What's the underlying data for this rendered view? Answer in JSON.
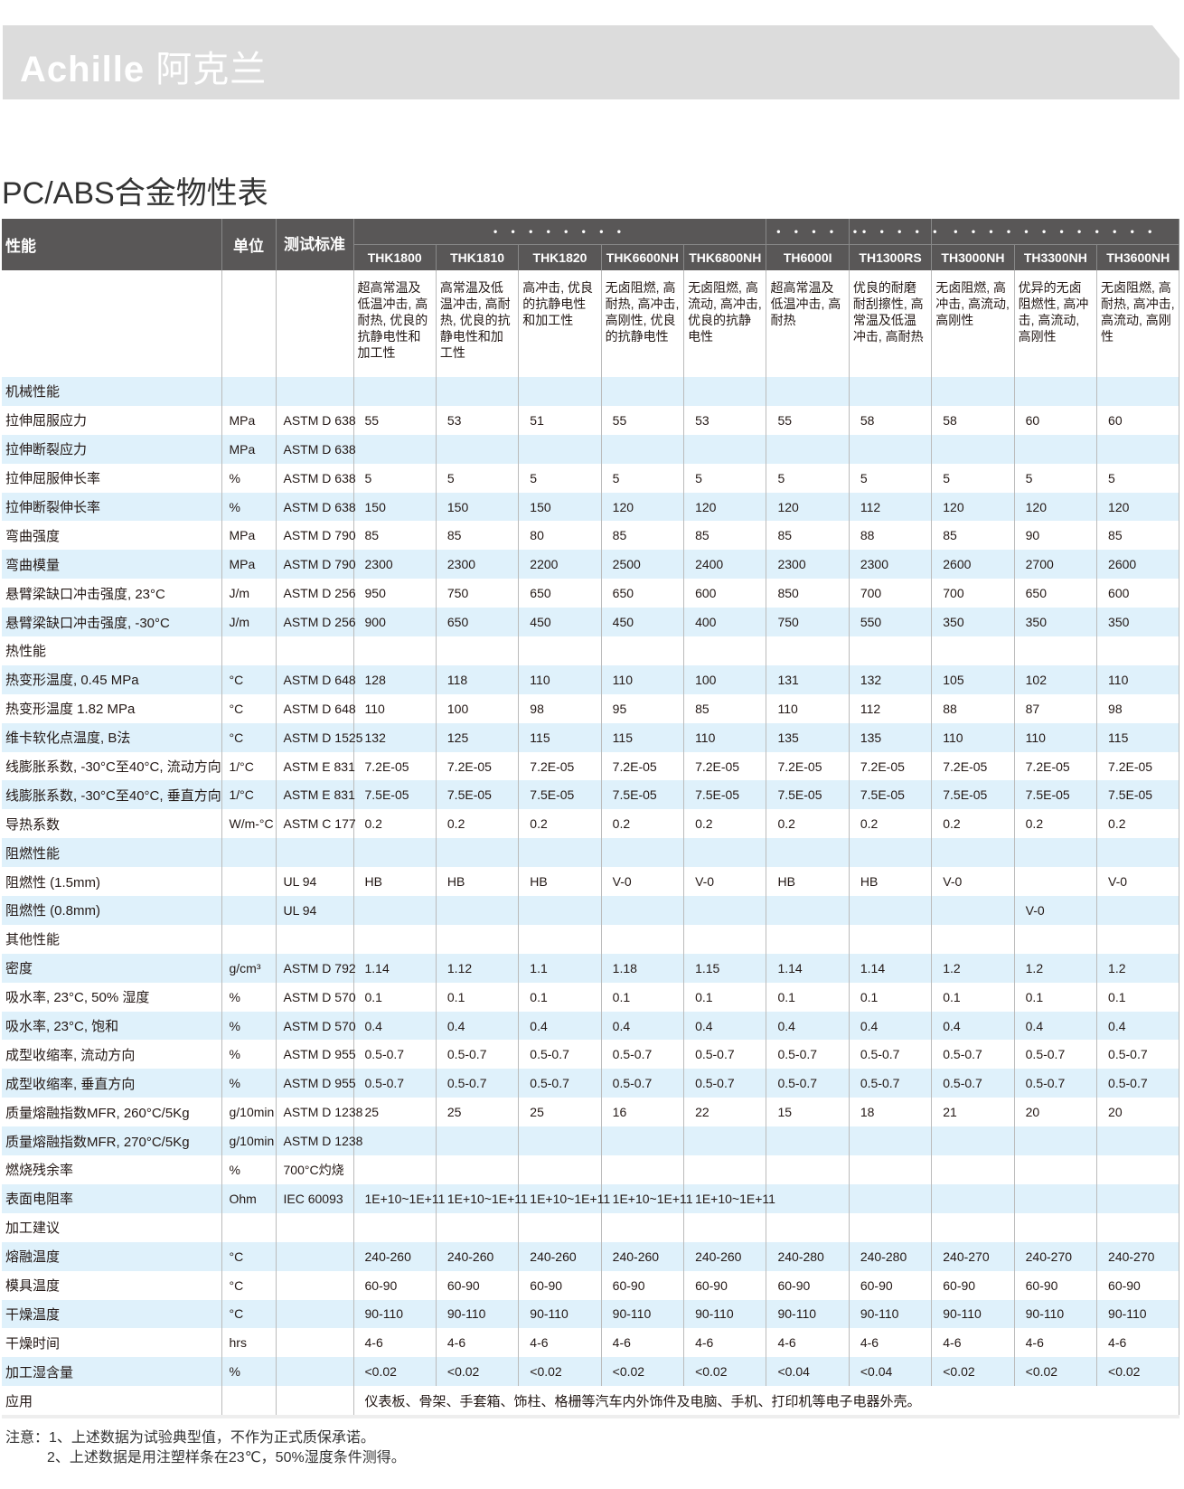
{
  "header": {
    "brand_latin": "Achille",
    "brand_cn": "阿克兰",
    "banner_color": "#dcdcdc"
  },
  "title": "PC/ABS合金物性表",
  "table": {
    "header_color": "#595757",
    "stripe_color": "#dff1fb",
    "col_property": "性能",
    "col_unit": "单位",
    "col_std": "测试标准",
    "groups": [
      {
        "label": "• • • • • • • •",
        "span": 5
      },
      {
        "label": "• • • •",
        "span": 1
      },
      {
        "label": "•• • • • •",
        "span": 1
      },
      {
        "label": "• •      • • • • • • • • • •",
        "span": 3
      }
    ],
    "products": [
      "THK1800",
      "THK1810",
      "THK1820",
      "THK6600NH",
      "THK6800NH",
      "TH6000I",
      "TH1300RS",
      "TH3000NH",
      "TH3300NH",
      "TH3600NH"
    ],
    "descriptions": [
      "超高常温及低温冲击, 高耐热, 优良的抗静电性和加工性",
      "高常温及低温冲击, 高耐热, 优良的抗静电性和加工性",
      "高冲击, 优良的抗静电性和加工性",
      "无卤阻燃, 高耐热, 高冲击, 高刚性, 优良的抗静电性",
      "无卤阻燃, 高流动, 高冲击, 优良的抗静电性",
      "超高常温及低温冲击, 高耐热",
      "优良的耐磨耐刮擦性, 高常温及低温冲击, 高耐热",
      "无卤阻燃, 高冲击, 高流动, 高刚性",
      "优异的无卤阻燃性, 高冲击, 高流动, 高刚性",
      "无卤阻燃, 高耐热, 高冲击, 高流动, 高刚性"
    ],
    "rows": [
      {
        "name": "机械性能",
        "unit": "",
        "std": "",
        "values": []
      },
      {
        "name": "拉伸屈服应力",
        "unit": "MPa",
        "std": "ASTM D 638",
        "values": [
          "55",
          "53",
          "51",
          "55",
          "53",
          "55",
          "58",
          "58",
          "60",
          "60"
        ]
      },
      {
        "name": "拉伸断裂应力",
        "unit": "MPa",
        "std": "ASTM D 638",
        "values": []
      },
      {
        "name": "拉伸屈服伸长率",
        "unit": "%",
        "std": "ASTM D 638",
        "values": [
          "5",
          "5",
          "5",
          "5",
          "5",
          "5",
          "5",
          "5",
          "5",
          "5"
        ]
      },
      {
        "name": "拉伸断裂伸长率",
        "unit": "%",
        "std": "ASTM D 638",
        "values": [
          "150",
          "150",
          "150",
          "120",
          "120",
          "120",
          "112",
          "120",
          "120",
          "120"
        ]
      },
      {
        "name": "弯曲强度",
        "unit": "MPa",
        "std": "ASTM D 790",
        "values": [
          "85",
          "85",
          "80",
          "85",
          "85",
          "85",
          "88",
          "85",
          "90",
          "85"
        ]
      },
      {
        "name": "弯曲模量",
        "unit": "MPa",
        "std": "ASTM D 790",
        "values": [
          "2300",
          "2300",
          "2200",
          "2500",
          "2400",
          "2300",
          "2300",
          "2600",
          "2700",
          "2600"
        ]
      },
      {
        "name": "悬臂梁缺口冲击强度, 23°C",
        "unit": "J/m",
        "std": "ASTM D 256",
        "values": [
          "950",
          "750",
          "650",
          "650",
          "600",
          "850",
          "700",
          "700",
          "650",
          "600"
        ]
      },
      {
        "name": "悬臂梁缺口冲击强度, -30°C",
        "unit": "J/m",
        "std": "ASTM D 256",
        "values": [
          "900",
          "650",
          "450",
          "450",
          "400",
          "750",
          "550",
          "350",
          "350",
          "350"
        ]
      },
      {
        "name": "热性能",
        "unit": "",
        "std": "",
        "values": []
      },
      {
        "name": "热变形温度, 0.45 MPa",
        "unit": "°C",
        "std": "ASTM D 648",
        "values": [
          "128",
          "118",
          "110",
          "110",
          "100",
          "131",
          "132",
          "105",
          "102",
          "110"
        ]
      },
      {
        "name": "热变形温度  1.82 MPa",
        "unit": "°C",
        "std": "ASTM D 648",
        "values": [
          "110",
          "100",
          "98",
          "95",
          "85",
          "110",
          "112",
          "88",
          "87",
          "98"
        ]
      },
      {
        "name": "维卡软化点温度, B法",
        "unit": "°C",
        "std": "ASTM D 1525",
        "values": [
          "132",
          "125",
          "115",
          "115",
          "110",
          "135",
          "135",
          "110",
          "110",
          "115"
        ]
      },
      {
        "name": "线膨胀系数, -30°C至40°C, 流动方向",
        "unit": "1/°C",
        "std": "ASTM E 831",
        "values": [
          "7.2E-05",
          "7.2E-05",
          "7.2E-05",
          "7.2E-05",
          "7.2E-05",
          "7.2E-05",
          "7.2E-05",
          "7.2E-05",
          "7.2E-05",
          "7.2E-05"
        ]
      },
      {
        "name": "线膨胀系数, -30°C至40°C, 垂直方向",
        "unit": "1/°C",
        "std": "ASTM E 831",
        "values": [
          "7.5E-05",
          "7.5E-05",
          "7.5E-05",
          "7.5E-05",
          "7.5E-05",
          "7.5E-05",
          "7.5E-05",
          "7.5E-05",
          "7.5E-05",
          "7.5E-05"
        ]
      },
      {
        "name": "导热系数",
        "unit": "W/m-°C",
        "std": "ASTM C 177",
        "values": [
          "0.2",
          "0.2",
          "0.2",
          "0.2",
          "0.2",
          "0.2",
          "0.2",
          "0.2",
          "0.2",
          "0.2"
        ]
      },
      {
        "name": "阻燃性能",
        "unit": "",
        "std": "",
        "values": []
      },
      {
        "name": "阻燃性 (1.5mm)",
        "unit": "",
        "std": "UL 94",
        "values": [
          "HB",
          "HB",
          "HB",
          "V-0",
          "V-0",
          "HB",
          "HB",
          "V-0",
          "",
          "V-0"
        ]
      },
      {
        "name": "阻燃性 (0.8mm)",
        "unit": "",
        "std": "UL 94",
        "values": [
          "",
          "",
          "",
          "",
          "",
          "",
          "",
          "",
          "V-0",
          ""
        ]
      },
      {
        "name": "其他性能",
        "unit": "",
        "std": "",
        "values": []
      },
      {
        "name": "密度",
        "unit": "g/cm³",
        "std": "ASTM D 792",
        "values": [
          "1.14",
          "1.12",
          "1.1",
          "1.18",
          "1.15",
          "1.14",
          "1.14",
          "1.2",
          "1.2",
          "1.2"
        ]
      },
      {
        "name": "吸水率, 23°C, 50% 湿度",
        "unit": "%",
        "std": "ASTM D 570",
        "values": [
          "0.1",
          "0.1",
          "0.1",
          "0.1",
          "0.1",
          "0.1",
          "0.1",
          "0.1",
          "0.1",
          "0.1"
        ]
      },
      {
        "name": "吸水率, 23°C, 饱和",
        "unit": "%",
        "std": "ASTM D 570",
        "values": [
          "0.4",
          "0.4",
          "0.4",
          "0.4",
          "0.4",
          "0.4",
          "0.4",
          "0.4",
          "0.4",
          "0.4"
        ]
      },
      {
        "name": "成型收缩率, 流动方向",
        "unit": "%",
        "std": "ASTM D 955",
        "values": [
          "0.5-0.7",
          "0.5-0.7",
          "0.5-0.7",
          "0.5-0.7",
          "0.5-0.7",
          "0.5-0.7",
          "0.5-0.7",
          "0.5-0.7",
          "0.5-0.7",
          "0.5-0.7"
        ]
      },
      {
        "name": "成型收缩率, 垂直方向",
        "unit": "%",
        "std": "ASTM D 955",
        "values": [
          "0.5-0.7",
          "0.5-0.7",
          "0.5-0.7",
          "0.5-0.7",
          "0.5-0.7",
          "0.5-0.7",
          "0.5-0.7",
          "0.5-0.7",
          "0.5-0.7",
          "0.5-0.7"
        ]
      },
      {
        "name": "质量熔融指数MFR, 260°C/5Kg",
        "unit": "g/10min",
        "std": "ASTM D 1238",
        "values": [
          "25",
          "25",
          "25",
          "16",
          "22",
          "15",
          "18",
          "21",
          "20",
          "20"
        ]
      },
      {
        "name": "质量熔融指数MFR, 270°C/5Kg",
        "unit": "g/10min",
        "std": "ASTM D 1238",
        "values": []
      },
      {
        "name": "燃烧残余率",
        "unit": "%",
        "std": "700°C灼烧",
        "values": []
      },
      {
        "name": "表面电阻率",
        "unit": "Ohm",
        "std": "IEC 60093",
        "values": [
          "1E+10~1E+11",
          "1E+10~1E+11",
          "1E+10~1E+11",
          "1E+10~1E+11",
          "1E+10~1E+11",
          "",
          "",
          "",
          "",
          ""
        ]
      },
      {
        "name": "加工建议",
        "unit": "",
        "std": "",
        "values": []
      },
      {
        "name": "熔融温度",
        "unit": "°C",
        "std": "",
        "values": [
          "240-260",
          "240-260",
          "240-260",
          "240-260",
          "240-260",
          "240-280",
          "240-280",
          "240-270",
          "240-270",
          "240-270"
        ]
      },
      {
        "name": "模具温度",
        "unit": "°C",
        "std": "",
        "values": [
          "60-90",
          "60-90",
          "60-90",
          "60-90",
          "60-90",
          "60-90",
          "60-90",
          "60-90",
          "60-90",
          "60-90"
        ]
      },
      {
        "name": "干燥温度",
        "unit": "°C",
        "std": "",
        "values": [
          "90-110",
          "90-110",
          "90-110",
          "90-110",
          "90-110",
          "90-110",
          "90-110",
          "90-110",
          "90-110",
          "90-110"
        ]
      },
      {
        "name": "干燥时间",
        "unit": "hrs",
        "std": "",
        "values": [
          "4-6",
          "4-6",
          "4-6",
          "4-6",
          "4-6",
          "4-6",
          "4-6",
          "4-6",
          "4-6",
          "4-6"
        ]
      },
      {
        "name": "加工湿含量",
        "unit": "%",
        "std": "",
        "values": [
          "<0.02",
          "<0.02",
          "<0.02",
          "<0.02",
          "<0.02",
          "<0.04",
          "<0.04",
          "<0.02",
          "<0.02",
          "<0.02"
        ]
      }
    ],
    "application": {
      "name": "应用",
      "value": "仪表板、骨架、手套箱、饰柱、格栅等汽车内外饰件及电脑、手机、打印机等电子电器外壳。"
    }
  },
  "notes": [
    "注意：1、上述数据为试验典型值，不作为正式质保承诺。",
    "2、上述数据是用注塑样条在23℃，50%湿度条件测得。"
  ]
}
